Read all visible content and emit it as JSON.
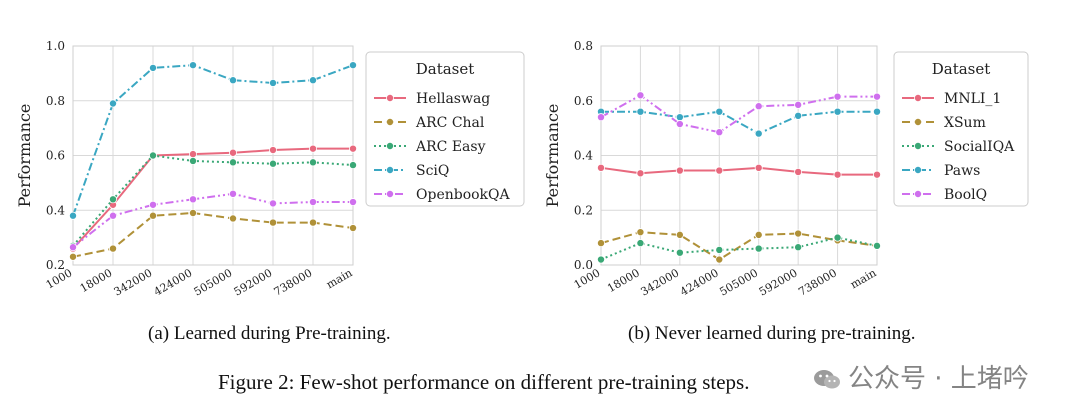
{
  "figure_caption": "Figure 2: Few-shot performance on different pre-training steps.",
  "watermark": {
    "text": "公众号 · 上堵吟"
  },
  "colors": {
    "pink": "#e8697e",
    "gold": "#b09138",
    "green": "#3aa876",
    "teal": "#3aa7c2",
    "violet": "#cf6fee",
    "grid": "#d9d9d9"
  },
  "chart_data": [
    {
      "type": "line",
      "caption": "(a) Learned during Pre-training.",
      "title": "",
      "xlabel": "",
      "ylabel": "Performance",
      "categories": [
        "1000",
        "18000",
        "342000",
        "424000",
        "505000",
        "592000",
        "738000",
        "main"
      ],
      "ylim": [
        0.2,
        1.0
      ],
      "yticks": [
        "0.2",
        "0.4",
        "0.6",
        "0.8",
        "1.0"
      ],
      "grid": true,
      "legend": {
        "title": "Dataset",
        "position": "right"
      },
      "series": [
        {
          "name": "Hellaswag",
          "color": "#e8697e",
          "dash": "solid",
          "values": [
            0.26,
            0.42,
            0.6,
            0.605,
            0.61,
            0.62,
            0.625,
            0.625
          ]
        },
        {
          "name": "ARC Chal",
          "color": "#b09138",
          "dash": "dashed",
          "values": [
            0.23,
            0.26,
            0.38,
            0.39,
            0.37,
            0.355,
            0.355,
            0.335
          ]
        },
        {
          "name": "ARC Easy",
          "color": "#3aa876",
          "dash": "dotted",
          "values": [
            0.27,
            0.44,
            0.6,
            0.58,
            0.575,
            0.57,
            0.575,
            0.565
          ]
        },
        {
          "name": "SciQ",
          "color": "#3aa7c2",
          "dash": "dashdot",
          "values": [
            0.38,
            0.79,
            0.92,
            0.93,
            0.875,
            0.865,
            0.875,
            0.93
          ]
        },
        {
          "name": "OpenbookQA",
          "color": "#cf6fee",
          "dash": "dashdotdot",
          "values": [
            0.265,
            0.38,
            0.42,
            0.44,
            0.46,
            0.425,
            0.43,
            0.43
          ]
        }
      ]
    },
    {
      "type": "line",
      "caption": "(b) Never learned during pre-training.",
      "title": "",
      "xlabel": "",
      "ylabel": "Performance",
      "categories": [
        "1000",
        "18000",
        "342000",
        "424000",
        "505000",
        "592000",
        "738000",
        "main"
      ],
      "ylim": [
        0.0,
        0.8
      ],
      "yticks": [
        "0.0",
        "0.2",
        "0.4",
        "0.6",
        "0.8"
      ],
      "grid": true,
      "legend": {
        "title": "Dataset",
        "position": "right"
      },
      "series": [
        {
          "name": "MNLI_1",
          "color": "#e8697e",
          "dash": "solid",
          "values": [
            0.355,
            0.335,
            0.345,
            0.345,
            0.355,
            0.34,
            0.33,
            0.33
          ]
        },
        {
          "name": "XSum",
          "color": "#b09138",
          "dash": "dashed",
          "values": [
            0.08,
            0.12,
            0.11,
            0.02,
            0.11,
            0.115,
            0.09,
            0.07
          ]
        },
        {
          "name": "SocialIQA",
          "color": "#3aa876",
          "dash": "dotted",
          "values": [
            0.02,
            0.08,
            0.045,
            0.055,
            0.06,
            0.065,
            0.1,
            0.07
          ]
        },
        {
          "name": "Paws",
          "color": "#3aa7c2",
          "dash": "dashdot",
          "values": [
            0.56,
            0.56,
            0.54,
            0.56,
            0.48,
            0.545,
            0.56,
            0.56
          ]
        },
        {
          "name": "BoolQ",
          "color": "#cf6fee",
          "dash": "dashdotdot",
          "values": [
            0.54,
            0.62,
            0.515,
            0.485,
            0.58,
            0.585,
            0.615,
            0.615
          ]
        }
      ]
    }
  ]
}
